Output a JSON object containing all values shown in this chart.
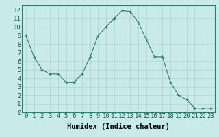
{
  "x": [
    0,
    1,
    2,
    3,
    4,
    5,
    6,
    7,
    8,
    9,
    10,
    11,
    12,
    13,
    14,
    15,
    16,
    17,
    18,
    19,
    20,
    21,
    22,
    23
  ],
  "y": [
    9,
    6.5,
    5,
    4.5,
    4.5,
    3.5,
    3.5,
    4.5,
    6.5,
    9,
    10,
    11,
    11.9,
    11.8,
    10.5,
    8.5,
    6.5,
    6.5,
    3.5,
    2,
    1.5,
    0.5,
    0.5,
    0.5
  ],
  "line_color": "#2e7d6e",
  "marker": "+",
  "marker_size": 3,
  "bg_color": "#c8eae8",
  "grid_color": "#b0d4d0",
  "xlabel": "Humidex (Indice chaleur)",
  "tick_fontsize": 6.5,
  "xlabel_fontsize": 7.5,
  "xlim": [
    -0.5,
    23.5
  ],
  "ylim": [
    0,
    12.5
  ],
  "yticks": [
    0,
    1,
    2,
    3,
    4,
    5,
    6,
    7,
    8,
    9,
    10,
    11,
    12
  ],
  "xticks": [
    0,
    1,
    2,
    3,
    4,
    5,
    6,
    7,
    8,
    9,
    10,
    11,
    12,
    13,
    14,
    15,
    16,
    17,
    18,
    19,
    20,
    21,
    22,
    23
  ],
  "xtick_labels": [
    "0",
    "1",
    "2",
    "3",
    "4",
    "5",
    "6",
    "7",
    "8",
    "9",
    "10",
    "11",
    "12",
    "13",
    "14",
    "15",
    "16",
    "17",
    "18",
    "19",
    "20",
    "21",
    "22",
    "23"
  ]
}
